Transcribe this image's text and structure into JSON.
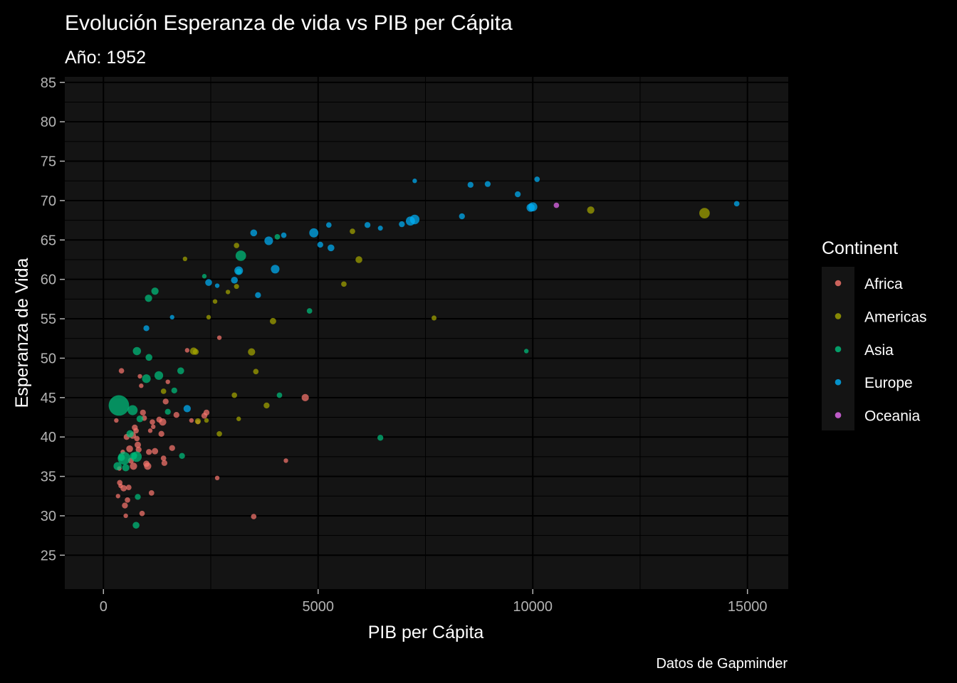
{
  "chart_data": {
    "type": "scatter",
    "title": "Evolución Esperanza de vida vs PIB per Cápita",
    "subtitle": "Año: 1952",
    "xlabel": "PIB per Cápita",
    "ylabel": "Esperanza de Vida",
    "caption": "Datos de Gapminder",
    "xlim": [
      -900,
      15950
    ],
    "ylim": [
      20.7,
      85.7
    ],
    "xticks": [
      0,
      5000,
      10000,
      15000
    ],
    "xtick_labels": [
      "0",
      "5000",
      "10000",
      "15000"
    ],
    "yticks": [
      25,
      30,
      35,
      40,
      45,
      50,
      55,
      60,
      65,
      70,
      75,
      80,
      85
    ],
    "ytick_labels": [
      "25",
      "30",
      "35",
      "40",
      "45",
      "50",
      "55",
      "60",
      "65",
      "70",
      "75",
      "80",
      "85"
    ],
    "grid": true,
    "legend": {
      "title": "Continent",
      "position": "right",
      "items": [
        {
          "label": "Africa",
          "color": "#F8766D"
        },
        {
          "label": "Americas",
          "color": "#A3A500"
        },
        {
          "label": "Asia",
          "color": "#00BF7D"
        },
        {
          "label": "Europe",
          "color": "#00B0F6"
        },
        {
          "label": "Oceania",
          "color": "#E76BF3"
        }
      ]
    },
    "colors": {
      "Africa": "#F8766D",
      "Americas": "#A3A500",
      "Asia": "#00BF7D",
      "Europe": "#00B0F6",
      "Oceania": "#E76BF3"
    },
    "series": [
      {
        "name": "Africa",
        "points": [
          [
            300,
            42.1,
            1
          ],
          [
            340,
            32.5,
            1
          ],
          [
            370,
            36.0,
            1
          ],
          [
            380,
            34.2,
            1.2
          ],
          [
            400,
            33.8,
            1
          ],
          [
            420,
            48.4,
            1.2
          ],
          [
            450,
            38.1,
            1
          ],
          [
            470,
            33.5,
            1.4
          ],
          [
            500,
            31.3,
            1.3
          ],
          [
            520,
            30.0,
            1
          ],
          [
            540,
            40.0,
            1.3
          ],
          [
            560,
            32.0,
            1.2
          ],
          [
            590,
            33.6,
            1.2
          ],
          [
            610,
            38.5,
            1.5
          ],
          [
            640,
            37.0,
            1.3
          ],
          [
            680,
            40.2,
            1.5
          ],
          [
            700,
            36.3,
            1.6
          ],
          [
            730,
            41.2,
            1.3
          ],
          [
            760,
            40.8,
            1.2
          ],
          [
            780,
            39.8,
            1.2
          ],
          [
            800,
            39.0,
            1.4
          ],
          [
            820,
            38.4,
            1.3
          ],
          [
            850,
            47.7,
            1
          ],
          [
            880,
            46.5,
            1
          ],
          [
            900,
            30.3,
            1.2
          ],
          [
            920,
            43.1,
            1.3
          ],
          [
            950,
            42.4,
            1.2
          ],
          [
            1000,
            36.6,
            1.4
          ],
          [
            1030,
            36.3,
            1.6
          ],
          [
            1060,
            38.1,
            1.3
          ],
          [
            1090,
            40.8,
            1
          ],
          [
            1120,
            32.9,
            1.2
          ],
          [
            1140,
            41.9,
            1.2
          ],
          [
            1160,
            41.3,
            1
          ],
          [
            1200,
            38.2,
            1.4
          ],
          [
            1300,
            42.2,
            1.3
          ],
          [
            1350,
            40.4,
            1.3
          ],
          [
            1380,
            41.9,
            1.6
          ],
          [
            1400,
            37.3,
            1.2
          ],
          [
            1420,
            36.7,
            1.3
          ],
          [
            1450,
            44.5,
            1.3
          ],
          [
            1500,
            47.0,
            1
          ],
          [
            1600,
            38.6,
            1.3
          ],
          [
            1700,
            42.8,
            1.3
          ],
          [
            1950,
            51.0,
            1
          ],
          [
            2050,
            42.1,
            1
          ],
          [
            2200,
            41.9,
            1
          ],
          [
            2350,
            42.7,
            1.3
          ],
          [
            2400,
            43.1,
            1.3
          ],
          [
            2650,
            34.8,
            1
          ],
          [
            2700,
            52.6,
            1
          ],
          [
            3500,
            29.9,
            1.2
          ],
          [
            4250,
            37.0,
            1
          ],
          [
            4700,
            45.0,
            1.6
          ]
        ]
      },
      {
        "name": "Americas",
        "points": [
          [
            1400,
            45.8,
            1.2
          ],
          [
            1900,
            62.6,
            1
          ],
          [
            2100,
            50.9,
            1.6
          ],
          [
            2150,
            50.8,
            1.3
          ],
          [
            2200,
            42.0,
            1.3
          ],
          [
            2400,
            42.1,
            1
          ],
          [
            2450,
            55.2,
            1
          ],
          [
            2600,
            57.2,
            1
          ],
          [
            2700,
            40.4,
            1.2
          ],
          [
            2900,
            58.4,
            1
          ],
          [
            3050,
            45.3,
            1.2
          ],
          [
            3100,
            64.3,
            1.2
          ],
          [
            3100,
            59.1,
            1.1
          ],
          [
            3150,
            42.3,
            1
          ],
          [
            3450,
            50.8,
            1.6
          ],
          [
            3550,
            48.3,
            1.2
          ],
          [
            3800,
            44.0,
            1.3
          ],
          [
            3950,
            54.7,
            1.4
          ],
          [
            5600,
            59.4,
            1.2
          ],
          [
            5800,
            66.1,
            1.2
          ],
          [
            5950,
            62.5,
            1.5
          ],
          [
            7700,
            55.1,
            1.1
          ],
          [
            11350,
            68.8,
            1.6
          ],
          [
            14000,
            68.4,
            2.3
          ]
        ]
      },
      {
        "name": "Asia",
        "points": [
          [
            330,
            36.3,
            1.8
          ],
          [
            360,
            44.0,
            4.5
          ],
          [
            420,
            37.4,
            1.5
          ],
          [
            480,
            37.3,
            2.8
          ],
          [
            520,
            36.1,
            1.6
          ],
          [
            620,
            40.4,
            1.6
          ],
          [
            680,
            43.4,
            2.2
          ],
          [
            700,
            37.6,
            1.6
          ],
          [
            760,
            28.8,
            1.5
          ],
          [
            770,
            37.5,
            2.3
          ],
          [
            780,
            50.9,
            1.8
          ],
          [
            800,
            32.4,
            1.3
          ],
          [
            850,
            42.3,
            1.5
          ],
          [
            1000,
            47.4,
            1.9
          ],
          [
            1050,
            57.6,
            1.6
          ],
          [
            1060,
            50.1,
            1.5
          ],
          [
            1200,
            58.5,
            1.6
          ],
          [
            1290,
            47.8,
            1.9
          ],
          [
            1500,
            43.2,
            1.3
          ],
          [
            1650,
            45.9,
            1.3
          ],
          [
            1800,
            48.4,
            1.5
          ],
          [
            1830,
            37.6,
            1.3
          ],
          [
            2350,
            60.4,
            1
          ],
          [
            3150,
            61.0,
            1.3
          ],
          [
            3200,
            63.0,
            2.3
          ],
          [
            4050,
            65.4,
            1.2
          ],
          [
            4100,
            45.3,
            1.2
          ],
          [
            4800,
            56.0,
            1.2
          ],
          [
            6450,
            39.9,
            1.3
          ],
          [
            9850,
            50.9,
            1
          ]
        ]
      },
      {
        "name": "Europe",
        "points": [
          [
            1000,
            53.8,
            1.3
          ],
          [
            1600,
            55.2,
            1
          ],
          [
            1950,
            43.6,
            1.6
          ],
          [
            2450,
            59.6,
            1.5
          ],
          [
            2650,
            59.2,
            1
          ],
          [
            3050,
            59.9,
            1.5
          ],
          [
            3150,
            61.1,
            1.9
          ],
          [
            3500,
            65.9,
            1.5
          ],
          [
            3600,
            58.0,
            1.3
          ],
          [
            3850,
            64.9,
            1.9
          ],
          [
            4000,
            61.3,
            1.9
          ],
          [
            4200,
            65.6,
            1.2
          ],
          [
            4900,
            65.9,
            2.0
          ],
          [
            5050,
            64.4,
            1.3
          ],
          [
            5250,
            66.9,
            1.2
          ],
          [
            5300,
            64.0,
            1.5
          ],
          [
            6150,
            66.9,
            1.3
          ],
          [
            6450,
            66.5,
            1.1
          ],
          [
            6950,
            67.0,
            1.3
          ],
          [
            7150,
            67.4,
            2.0
          ],
          [
            7250,
            72.5,
            1
          ],
          [
            7250,
            67.6,
            2.1
          ],
          [
            8350,
            68.0,
            1.3
          ],
          [
            8550,
            72.0,
            1.3
          ],
          [
            8950,
            72.1,
            1.3
          ],
          [
            9650,
            70.8,
            1.3
          ],
          [
            9950,
            69.1,
            1.8
          ],
          [
            10000,
            69.2,
            2.0
          ],
          [
            10100,
            72.7,
            1.2
          ],
          [
            14750,
            69.6,
            1.2
          ]
        ]
      },
      {
        "name": "Oceania",
        "points": [
          [
            10550,
            69.4,
            1.2
          ]
        ]
      }
    ]
  }
}
